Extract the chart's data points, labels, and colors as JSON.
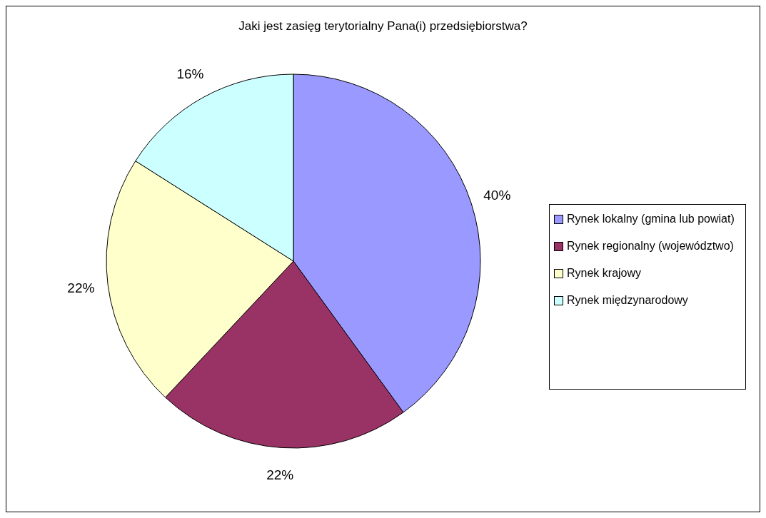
{
  "chart_data": {
    "type": "pie",
    "title": "Jaki jest zasięg terytorialny Pana(i) przedsiębiorstwa?",
    "categories": [
      "Rynek lokalny (gmina lub powiat)",
      "Rynek regionalny (województwo)",
      "Rynek krajowy",
      "Rynek międzynarodowy"
    ],
    "values": [
      40,
      22,
      22,
      16
    ],
    "colors": [
      "#9999ff",
      "#993366",
      "#ffffcc",
      "#ccffff"
    ],
    "value_labels": [
      "40%",
      "22%",
      "22%",
      "16%"
    ],
    "legend": "right"
  }
}
